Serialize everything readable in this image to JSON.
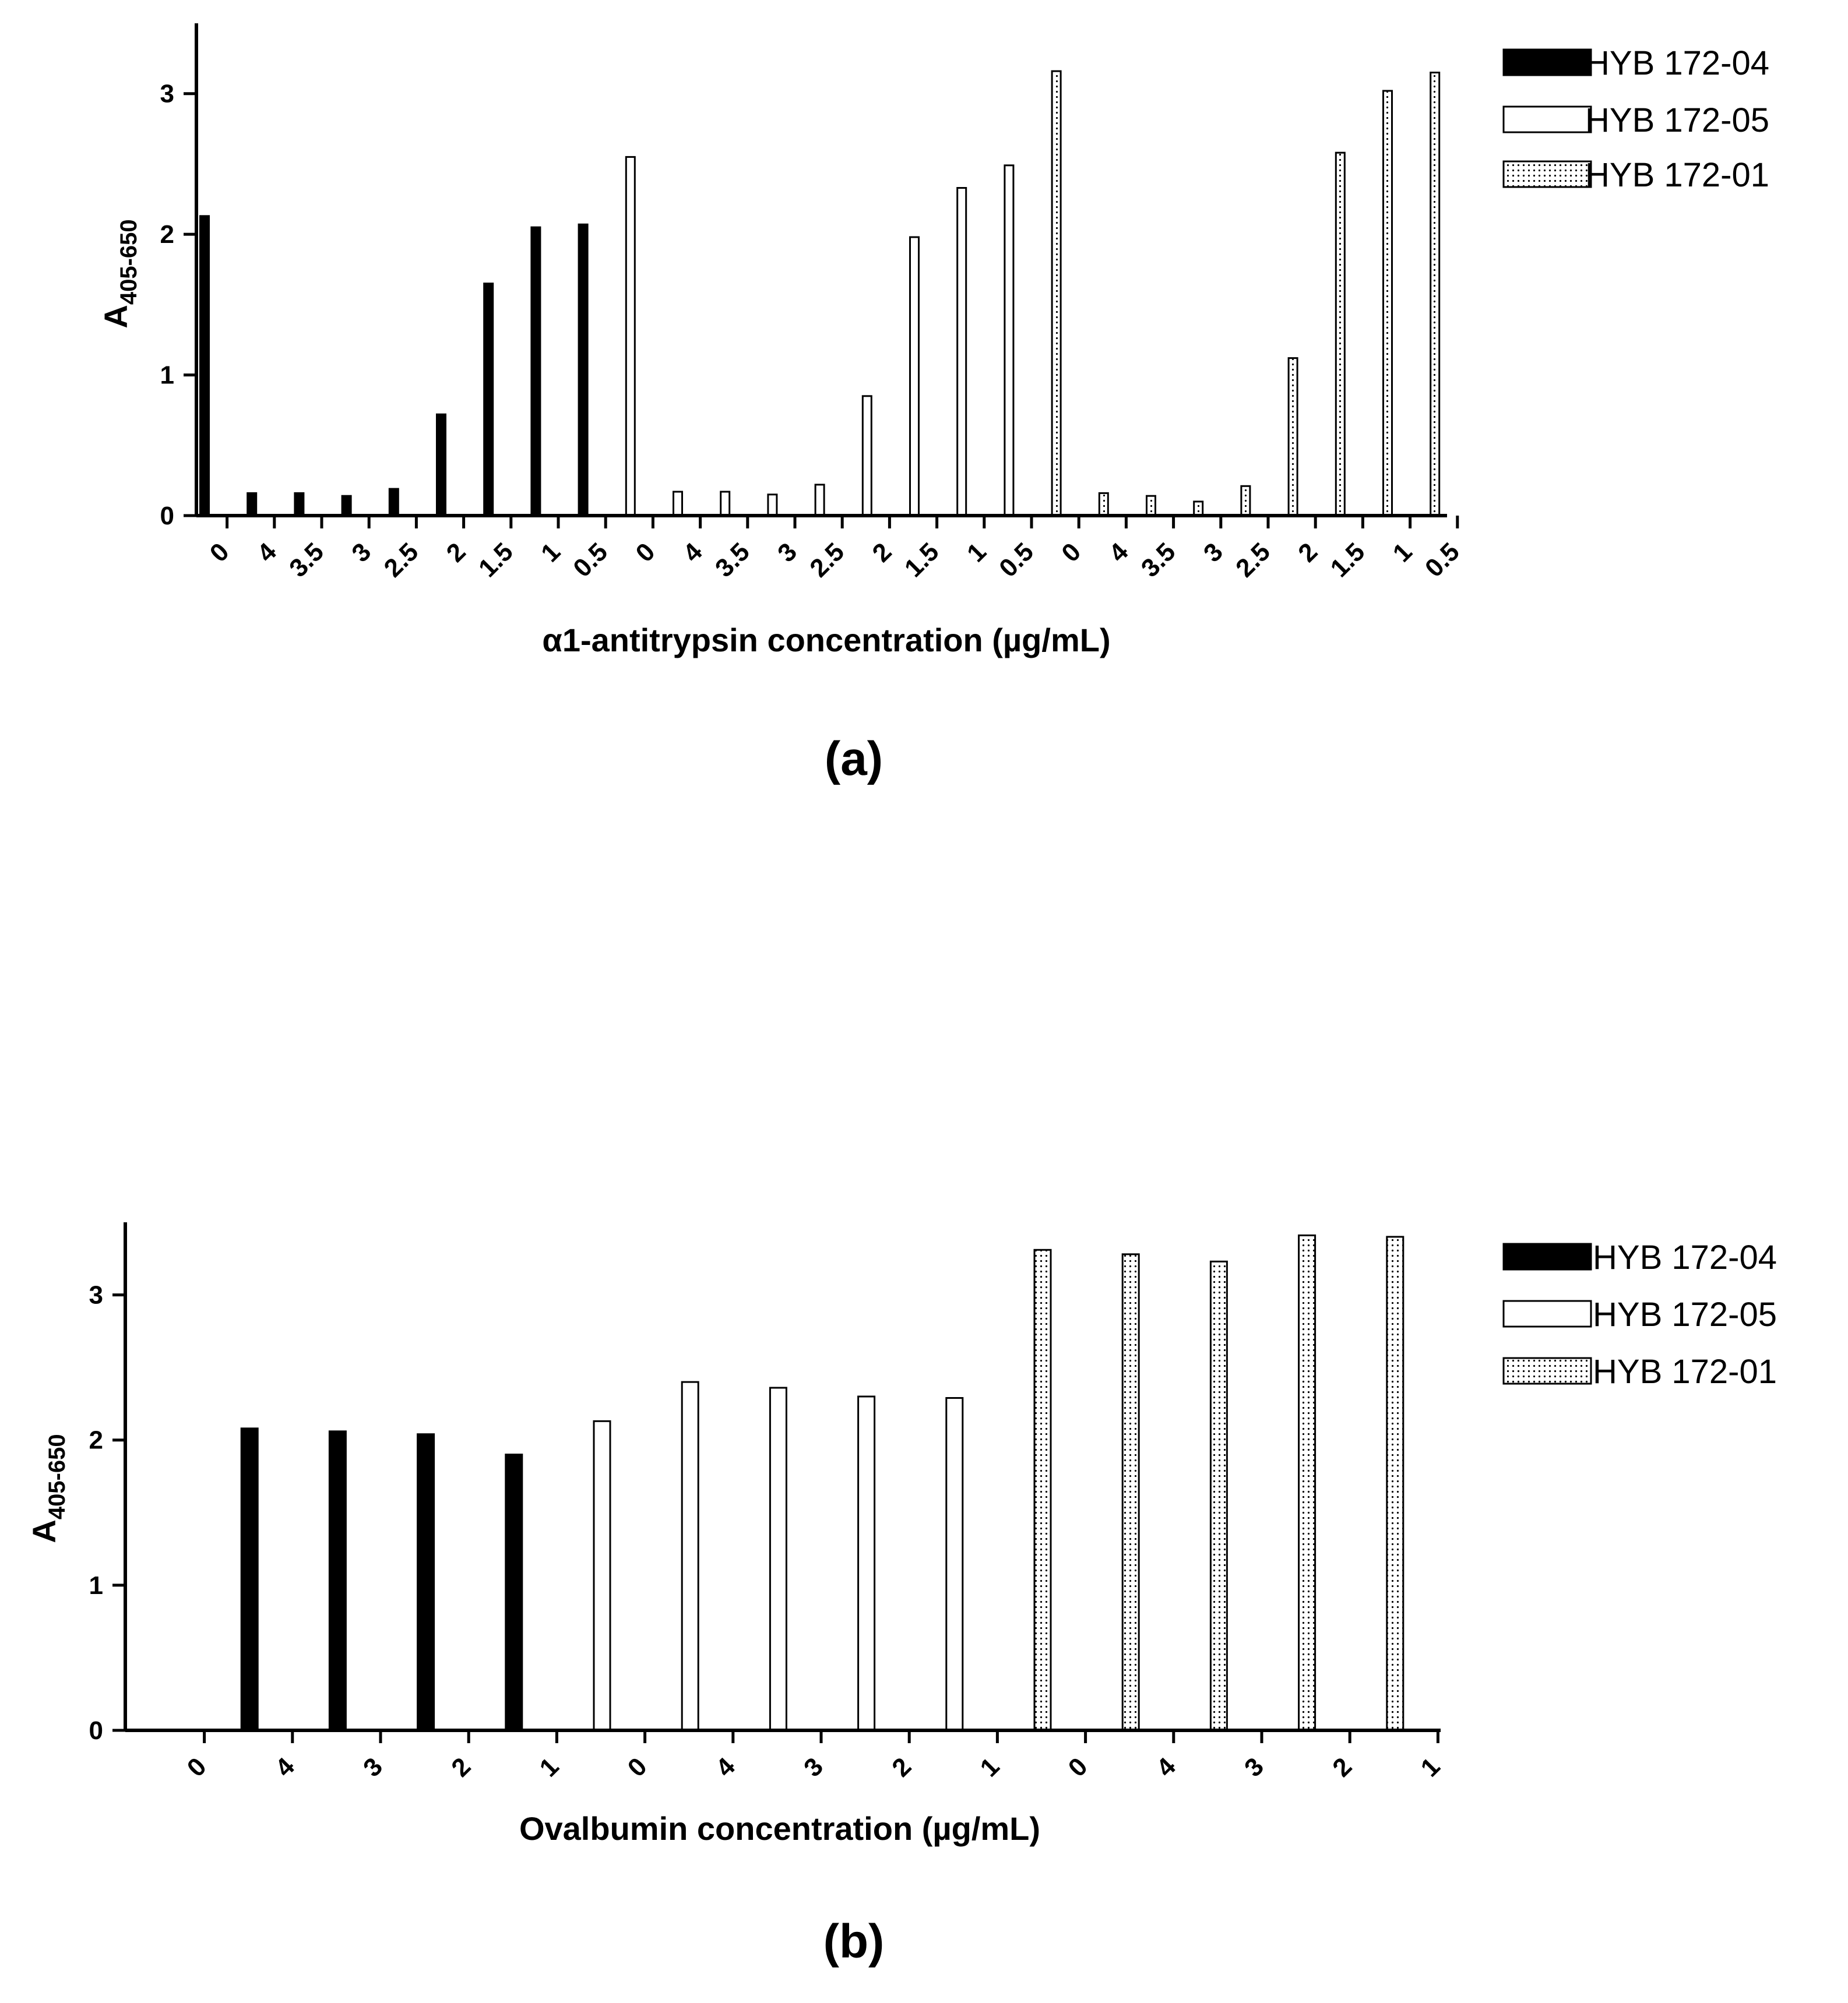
{
  "chart_data": [
    {
      "type": "bar",
      "panel_label": "(a)",
      "xlabel": "α1-antitrypsin concentration (µg/mL)",
      "ylabel_main": "A",
      "ylabel_sub": "405-650",
      "ylim": [
        0,
        3.5
      ],
      "yticks": [
        "0",
        "1",
        "2",
        "3"
      ],
      "categories": [
        "0",
        "4",
        "3.5",
        "3",
        "2.5",
        "2",
        "1.5",
        "1",
        "0.5",
        "0",
        "4",
        "3.5",
        "3",
        "2.5",
        "2",
        "1.5",
        "1",
        "0.5",
        "0",
        "4",
        "3.5",
        "3",
        "2.5",
        "2",
        "1.5",
        "1",
        "0.5"
      ],
      "series": [
        {
          "name": "HYB 172-04",
          "pattern": "solid",
          "values": [
            2.13,
            0.16,
            0.16,
            0.14,
            0.19,
            0.72,
            1.65,
            2.05,
            2.07,
            null,
            null,
            null,
            null,
            null,
            null,
            null,
            null,
            null,
            null,
            null,
            null,
            null,
            null,
            null,
            null,
            null,
            null
          ]
        },
        {
          "name": "HYB 172-05",
          "pattern": "open",
          "values": [
            null,
            null,
            null,
            null,
            null,
            null,
            null,
            null,
            null,
            2.55,
            0.17,
            0.17,
            0.15,
            0.22,
            0.85,
            1.98,
            2.33,
            2.49,
            null,
            null,
            null,
            null,
            null,
            null,
            null,
            null,
            null
          ]
        },
        {
          "name": "HYB 172-01",
          "pattern": "dotted",
          "values": [
            null,
            null,
            null,
            null,
            null,
            null,
            null,
            null,
            null,
            null,
            null,
            null,
            null,
            null,
            null,
            null,
            null,
            null,
            3.16,
            0.16,
            0.14,
            0.1,
            0.21,
            1.12,
            2.58,
            3.02,
            3.15
          ]
        }
      ],
      "legend": [
        "HYB 172-04",
        "HYB 172-05",
        "HYB 172-01"
      ]
    },
    {
      "type": "bar",
      "panel_label": "(b)",
      "xlabel": "Ovalbumin concentration (µg/mL)",
      "ylabel_main": "A",
      "ylabel_sub": "405-650",
      "ylim": [
        0,
        3.5
      ],
      "yticks": [
        "0",
        "1",
        "2",
        "3"
      ],
      "categories": [
        "0",
        "4",
        "3",
        "2",
        "1",
        "0",
        "4",
        "3",
        "2",
        "1",
        "0",
        "4",
        "3",
        "2",
        "1"
      ],
      "series": [
        {
          "name": "HYB 172-04",
          "pattern": "solid",
          "values": [
            0,
            2.08,
            2.06,
            2.04,
            1.9,
            null,
            null,
            null,
            null,
            null,
            null,
            null,
            null,
            null,
            null
          ]
        },
        {
          "name": "HYB 172-05",
          "pattern": "open",
          "values": [
            null,
            null,
            null,
            null,
            null,
            2.13,
            2.4,
            2.36,
            2.3,
            2.29,
            null,
            null,
            null,
            null,
            null
          ]
        },
        {
          "name": "HYB 172-01",
          "pattern": "dotted",
          "values": [
            null,
            null,
            null,
            null,
            null,
            null,
            null,
            null,
            null,
            null,
            3.31,
            3.28,
            3.23,
            3.41,
            3.4
          ]
        }
      ],
      "legend": [
        "HYB 172-04",
        "HYB 172-05",
        "HYB 172-01"
      ]
    }
  ]
}
